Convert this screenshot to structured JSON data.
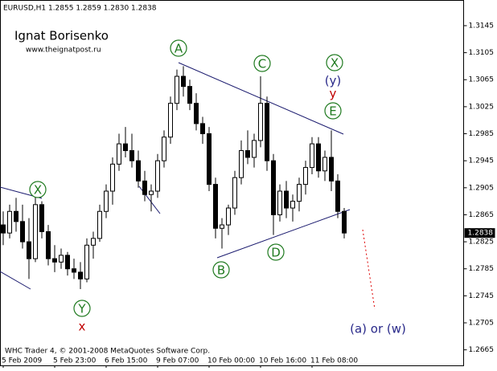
{
  "chart_data": {
    "type": "candlestick",
    "title": "EURUSD,H1  1.2855 1.2859 1.2830 1.2838",
    "categories": [
      "5 Feb 2009",
      null,
      null,
      null,
      null,
      null,
      null,
      null,
      "5 Feb 23:00",
      null,
      null,
      null,
      null,
      null,
      null,
      null,
      "6 Feb 15:00",
      null,
      null,
      null,
      null,
      null,
      null,
      null,
      "9 Feb 07:00",
      null,
      null,
      null,
      null,
      null,
      null,
      null,
      "10 Feb 00:00",
      null,
      null,
      null,
      null,
      null,
      null,
      null,
      "10 Feb 16:00",
      null,
      null,
      null,
      null,
      null,
      null,
      null,
      "11 Feb 08:00",
      null,
      null,
      null,
      null,
      null
    ],
    "open": [
      1.285,
      1.2838,
      1.287,
      1.2855,
      1.2825,
      1.28,
      1.288,
      1.284,
      1.28,
      1.2795,
      1.2805,
      1.2785,
      1.278,
      1.277,
      1.282,
      1.283,
      1.287,
      1.29,
      1.294,
      1.297,
      1.296,
      1.2945,
      1.2915,
      1.2895,
      1.29,
      1.2945,
      1.298,
      1.303,
      1.307,
      1.3055,
      1.303,
      1.3,
      1.2985,
      1.291,
      1.2845,
      1.285,
      1.2875,
      1.292,
      1.296,
      1.295,
      1.2975,
      1.303,
      1.2945,
      1.2865,
      1.29,
      1.2875,
      1.2885,
      1.291,
      1.2935,
      1.297,
      1.293,
      1.295,
      1.2915,
      1.287
    ],
    "high": [
      1.287,
      1.288,
      1.289,
      1.288,
      1.286,
      1.2895,
      1.2885,
      1.285,
      1.282,
      1.2815,
      1.281,
      1.28,
      1.2795,
      1.283,
      1.284,
      1.288,
      1.291,
      1.295,
      1.2985,
      1.2995,
      1.2985,
      1.296,
      1.293,
      1.291,
      1.2955,
      1.299,
      1.304,
      1.308,
      1.3085,
      1.3065,
      1.3045,
      1.301,
      1.2995,
      1.292,
      1.286,
      1.288,
      1.293,
      1.2975,
      1.299,
      1.2985,
      1.307,
      1.304,
      1.2955,
      1.291,
      1.2915,
      1.2895,
      1.292,
      1.2945,
      1.298,
      1.298,
      1.296,
      1.299,
      1.2925,
      1.2875
    ],
    "low": [
      1.282,
      1.283,
      1.284,
      1.2815,
      1.277,
      1.2795,
      1.283,
      1.279,
      1.278,
      1.2785,
      1.2775,
      1.277,
      1.2755,
      1.2765,
      1.28,
      1.2825,
      1.286,
      1.288,
      1.293,
      1.295,
      1.2935,
      1.2905,
      1.2885,
      1.287,
      1.289,
      1.2935,
      1.297,
      1.302,
      1.304,
      1.302,
      1.299,
      1.297,
      1.29,
      1.283,
      1.2815,
      1.2835,
      1.2865,
      1.291,
      1.294,
      1.2935,
      1.2965,
      1.293,
      1.2835,
      1.2855,
      1.286,
      1.2855,
      1.287,
      1.2895,
      1.2925,
      1.292,
      1.2915,
      1.29,
      1.286,
      1.283
    ],
    "close": [
      1.2838,
      1.287,
      1.2855,
      1.2825,
      1.28,
      1.288,
      1.284,
      1.28,
      1.2795,
      1.2805,
      1.2785,
      1.278,
      1.277,
      1.282,
      1.283,
      1.287,
      1.29,
      1.294,
      1.297,
      1.296,
      1.2945,
      1.2915,
      1.2895,
      1.29,
      1.2945,
      1.298,
      1.303,
      1.307,
      1.3055,
      1.303,
      1.3,
      1.2985,
      1.291,
      1.2845,
      1.285,
      1.2875,
      1.292,
      1.296,
      1.295,
      1.2975,
      1.303,
      1.2945,
      1.2865,
      1.29,
      1.2875,
      1.2885,
      1.291,
      1.2935,
      1.297,
      1.293,
      1.295,
      1.2915,
      1.287,
      1.2838
    ],
    "ylim": [
      1.2642,
      1.3183
    ],
    "yticks": [
      1.3145,
      1.3105,
      1.3065,
      1.3025,
      1.2985,
      1.2945,
      1.2905,
      1.2865,
      1.2825,
      1.2785,
      1.2745,
      1.2705,
      1.2665
    ],
    "current_price": 1.2838,
    "wave_labels": [
      "A",
      "B",
      "C",
      "D",
      "E",
      "X",
      "X",
      "Y",
      "(y)",
      "y",
      "x",
      "(a) or (w)"
    ]
  },
  "watermark": {
    "author": "Ignat Borisenko",
    "site": "www.theignatpost.ru"
  },
  "footer": "WHC Trader 4, © 2001-2008 MetaQuotes Software Corp."
}
